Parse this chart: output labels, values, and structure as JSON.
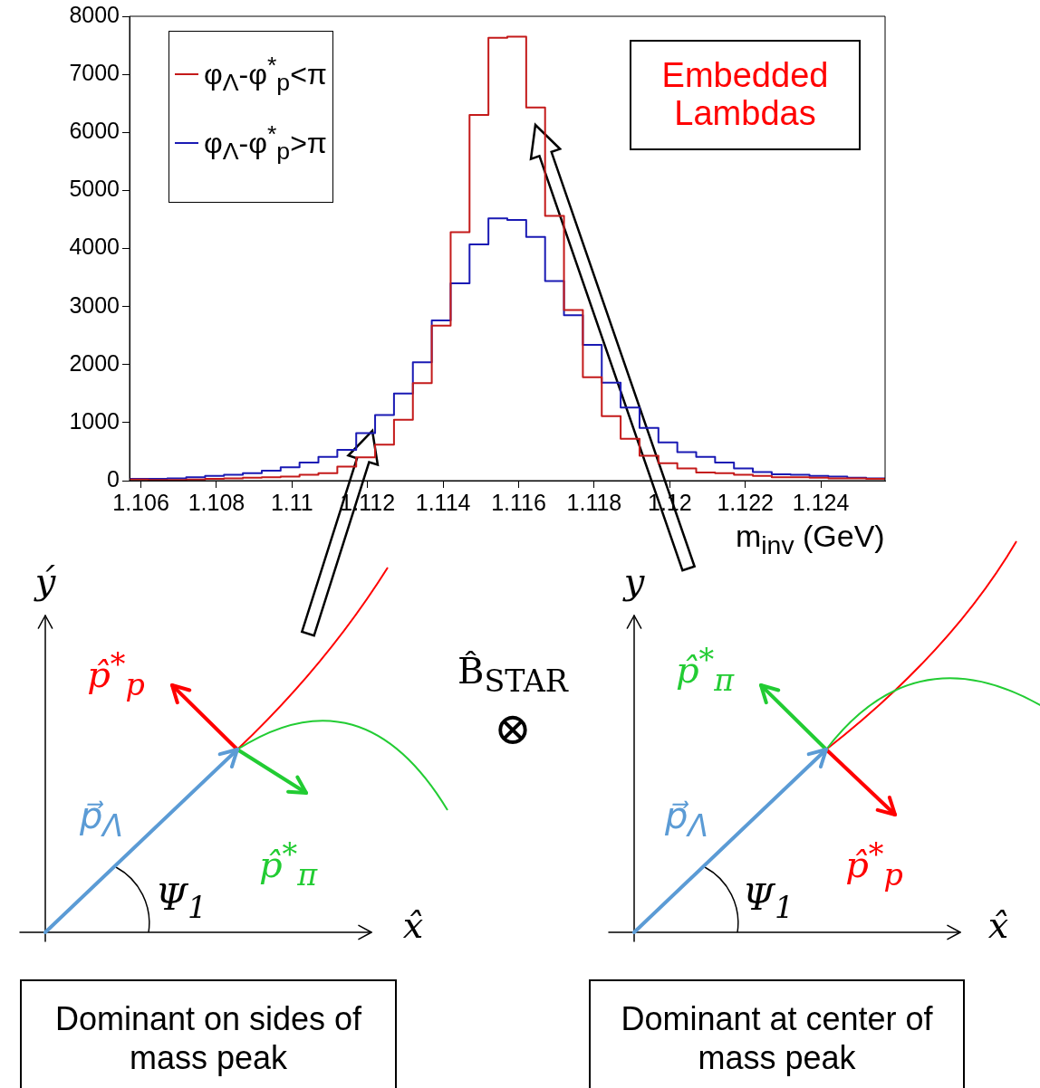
{
  "chart_data": {
    "type": "histogram",
    "bins": [
      1.1057,
      1.1062,
      1.1067,
      1.1072,
      1.1077,
      1.1082,
      1.1087,
      1.1092,
      1.1097,
      1.1102,
      1.1107,
      1.1112,
      1.1117,
      1.1122,
      1.1127,
      1.1132,
      1.1137,
      1.1142,
      1.1147,
      1.1152,
      1.1157,
      1.1162,
      1.1167,
      1.1172,
      1.1177,
      1.1182,
      1.1187,
      1.1192,
      1.1197,
      1.1202,
      1.1207,
      1.1212,
      1.1217,
      1.1222,
      1.1227,
      1.1232,
      1.1237,
      1.1242,
      1.1247,
      1.1252,
      1.1257
    ],
    "series": [
      {
        "name": "φ$_{Λ}$-φ$^{*}$$_{p}$<π",
        "color": "#c41a1a",
        "values": [
          20,
          10,
          10,
          20,
          30,
          40,
          50,
          60,
          70,
          100,
          130,
          240,
          400,
          620,
          1050,
          1680,
          2670,
          4280,
          6300,
          7630,
          7650,
          6430,
          4560,
          2940,
          1780,
          1110,
          720,
          430,
          300,
          210,
          140,
          130,
          100,
          80,
          60,
          60,
          50,
          40,
          40,
          30
        ]
      },
      {
        "name": "φ$_{Λ}$-φ$^{*}$$_{p}$>π",
        "color": "#1a1ab4",
        "values": [
          30,
          30,
          40,
          60,
          80,
          100,
          130,
          170,
          230,
          310,
          410,
          530,
          820,
          1130,
          1500,
          2040,
          2760,
          3400,
          4070,
          4520,
          4490,
          4200,
          3440,
          2850,
          2340,
          1690,
          1260,
          910,
          660,
          490,
          410,
          310,
          210,
          150,
          110,
          100,
          80,
          70,
          50,
          40
        ]
      }
    ],
    "xlim": [
      1.1057,
      1.1257
    ],
    "xticks": [
      1.106,
      1.108,
      1.11,
      1.112,
      1.114,
      1.116,
      1.118,
      1.12,
      1.122,
      1.124
    ],
    "ylim": [
      0,
      8000
    ],
    "yticks": [
      0,
      1000,
      2000,
      3000,
      4000,
      5000,
      6000,
      7000,
      8000
    ],
    "xlabel": "m$_{inv}$ (GeV)",
    "legend": "top left",
    "grid": false,
    "annotations": [
      "Embedded Lambdas",
      "ý",
      "p̂$^{*}$$_{p}$",
      "p⃗$_{Λ}$",
      "p̂$^{*}$$_{π}$",
      "Ψ$_{1}$",
      "x̂",
      "B̂$_{STAR}$",
      "⊗",
      "y",
      "p̂$^{*}$$_{π}$",
      "p⃗$_{Λ}$",
      "p̂$^{*}$$_{p}$",
      "Ψ$_{1}$",
      "x̂",
      "Dominant on sides of mass peak",
      "Dominant at center of mass peak"
    ]
  }
}
